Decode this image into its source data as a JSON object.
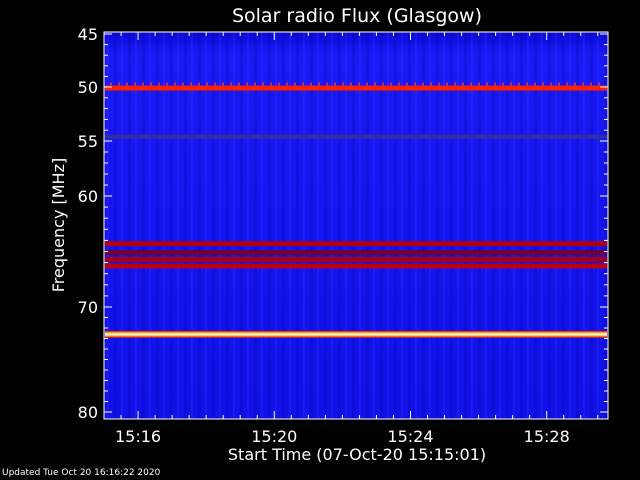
{
  "chart_data": {
    "type": "heatmap",
    "title": "Solar radio Flux (Glasgow)",
    "xlabel": "Start Time (07-Oct-20 15:15:01)",
    "ylabel": "Frequency [MHz]",
    "x_ticks": [
      "15:16",
      "15:20",
      "15:24",
      "15:28"
    ],
    "x_tick_minutes": [
      1,
      5,
      9,
      13
    ],
    "x_range_minutes": [
      0,
      14.8
    ],
    "y_ticks": [
      45,
      50,
      55,
      60,
      70,
      80
    ],
    "y_axis_scale": "nonlinear",
    "colormap": [
      "#0000ff",
      "#1010d0",
      "#880018",
      "#cc0000",
      "#ff2000",
      "#ffcc40",
      "#ffffff"
    ],
    "background_color": "#1414f0",
    "emission_bands": [
      {
        "freq_mhz": 50.1,
        "intensity": "high",
        "color": "#ff2000"
      },
      {
        "freq_mhz": 54.6,
        "intensity": "low",
        "color": "#3030a0"
      },
      {
        "freq_mhz": 64.3,
        "intensity": "medium",
        "color": "#b00010"
      },
      {
        "freq_mhz": 65.1,
        "intensity": "medium",
        "color": "#700030"
      },
      {
        "freq_mhz": 65.7,
        "intensity": "medium",
        "color": "#a00018"
      },
      {
        "freq_mhz": 66.3,
        "intensity": "medium",
        "color": "#c00008"
      },
      {
        "freq_mhz": 72.6,
        "intensity": "saturated",
        "color": "#fff0c0"
      }
    ]
  },
  "footer": {
    "updated": "Updated Tue Oct 20 16:16:22 2020"
  }
}
